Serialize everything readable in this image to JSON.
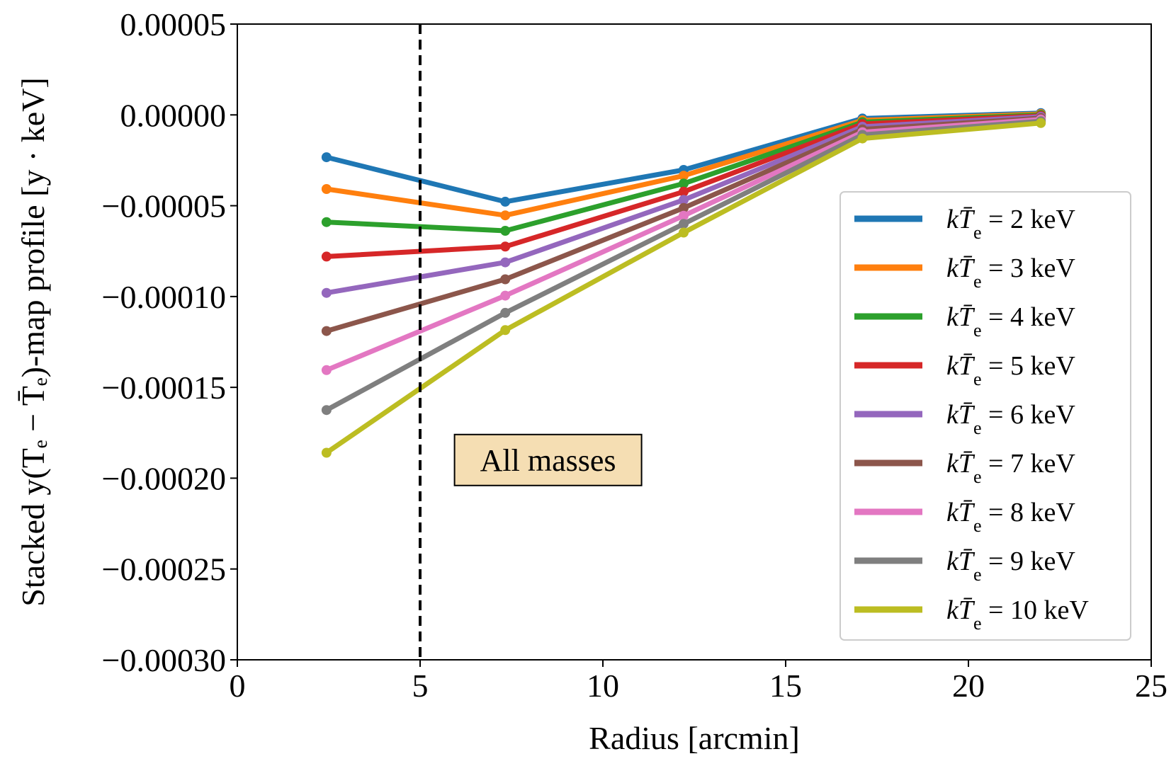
{
  "chart_data": {
    "type": "line",
    "title": "",
    "xlabel": "Radius [arcmin]",
    "ylabel": "Stacked y(Tₑ − T̄ₑ)-map profile [y · keV]",
    "xlim": [
      0,
      25
    ],
    "ylim": [
      -0.0003,
      5e-05
    ],
    "xticks": [
      0,
      5,
      10,
      15,
      20,
      25
    ],
    "xtick_labels": [
      "0",
      "5",
      "10",
      "15",
      "20",
      "25"
    ],
    "yticks": [
      5e-05,
      0.0,
      -5e-05,
      -0.0001,
      -0.00015,
      -0.0002,
      -0.00025,
      -0.0003
    ],
    "ytick_labels": [
      "0.00005",
      "0.00000",
      "−0.00005",
      "−0.00010",
      "−0.00015",
      "−0.00020",
      "−0.00025",
      "−0.00030"
    ],
    "grid": false,
    "legend_position": "right",
    "x": [
      2.44,
      7.33,
      12.21,
      17.1,
      21.98
    ],
    "series": [
      {
        "name": "kT̄ₑ = 2 keV",
        "prefix": "kT̄",
        "sub": "e",
        "suffix": " = 2 keV",
        "color": "#1f77b4",
        "values": [
          -2.33e-05,
          -4.78e-05,
          -3.03e-05,
          -2e-06,
          1e-06
        ]
      },
      {
        "name": "kT̄ₑ = 3 keV",
        "prefix": "kT̄",
        "sub": "e",
        "suffix": " = 3 keV",
        "color": "#ff7f0e",
        "values": [
          -4.08e-05,
          -5.53e-05,
          -3.35e-05,
          -3e-06,
          5e-07
        ]
      },
      {
        "name": "kT̄ₑ = 4 keV",
        "prefix": "kT̄",
        "sub": "e",
        "suffix": " = 4 keV",
        "color": "#2ca02c",
        "values": [
          -5.9e-05,
          -6.38e-05,
          -3.78e-05,
          -4e-06,
          0.0
        ]
      },
      {
        "name": "kT̄ₑ = 5 keV",
        "prefix": "kT̄",
        "sub": "e",
        "suffix": " = 5 keV",
        "color": "#d62728",
        "values": [
          -7.8e-05,
          -7.25e-05,
          -4.23e-05,
          -5e-06,
          -5e-07
        ]
      },
      {
        "name": "kT̄ₑ = 6 keV",
        "prefix": "kT̄",
        "sub": "e",
        "suffix": " = 6 keV",
        "color": "#9467bd",
        "values": [
          -9.8e-05,
          -8.12e-05,
          -4.68e-05,
          -6.5e-06,
          -1e-06
        ]
      },
      {
        "name": "kT̄ₑ = 7 keV",
        "prefix": "kT̄",
        "sub": "e",
        "suffix": " = 7 keV",
        "color": "#8c564b",
        "values": [
          -0.000119,
          -9.05e-05,
          -5.12e-05,
          -8e-06,
          -1.8e-06
        ]
      },
      {
        "name": "kT̄ₑ = 8 keV",
        "prefix": "kT̄",
        "sub": "e",
        "suffix": " = 8 keV",
        "color": "#e377c2",
        "values": [
          -0.0001405,
          -9.95e-05,
          -5.55e-05,
          -9.5e-06,
          -2.5e-06
        ]
      },
      {
        "name": "kT̄ₑ = 9 keV",
        "prefix": "kT̄",
        "sub": "e",
        "suffix": " = 9 keV",
        "color": "#7f7f7f",
        "values": [
          -0.0001625,
          -0.000109,
          -6e-05,
          -1.1e-05,
          -3.5e-06
        ]
      },
      {
        "name": "kT̄ₑ = 10 keV",
        "prefix": "kT̄",
        "sub": "e",
        "suffix": " = 10 keV",
        "color": "#bcbd22",
        "values": [
          -0.000186,
          -0.0001185,
          -6.48e-05,
          -1.3e-05,
          -4.5e-06
        ]
      }
    ],
    "annotations": [
      {
        "type": "vline",
        "x": 5,
        "style": "dashed",
        "color": "#000000"
      },
      {
        "type": "text",
        "text": "All masses",
        "x": 8.5,
        "y": -0.00019,
        "box_color": "#f5deb3"
      }
    ]
  }
}
